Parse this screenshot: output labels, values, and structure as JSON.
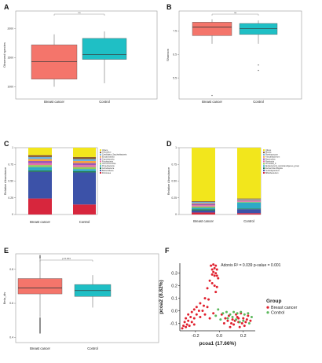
{
  "chart_data": [
    {
      "panel": "A",
      "type": "box",
      "ylabel": "Observed species",
      "yticks": [
        1000,
        1500,
        2000
      ],
      "ylim": [
        790,
        2300
      ],
      "categories": [
        "Breast cancer",
        "Control"
      ],
      "significance": "ns",
      "boxes": [
        {
          "category": "Breast cancer",
          "min": 1000,
          "q1": 1130,
          "median": 1430,
          "q3": 1720,
          "max": 1900,
          "color": "#F4756B"
        },
        {
          "category": "Control",
          "min": 1060,
          "q1": 1470,
          "median": 1550,
          "q3": 1830,
          "max": 1950,
          "color": "#1FBFC5"
        }
      ]
    },
    {
      "panel": "B",
      "type": "box",
      "ylabel": "Shannon",
      "yticks": [
        5.5,
        6.5,
        7.5
      ],
      "ylim": [
        4.6,
        8.35
      ],
      "categories": [
        "Breast cancer",
        "Control"
      ],
      "significance": "ns",
      "boxes": [
        {
          "category": "Breast cancer",
          "min": 6.95,
          "q1": 7.3,
          "median": 7.67,
          "q3": 7.87,
          "max": 8.0,
          "color": "#F4756B",
          "outliers": [
            4.75
          ]
        },
        {
          "category": "Control",
          "min": 6.95,
          "q1": 7.35,
          "median": 7.6,
          "q3": 7.82,
          "max": 7.95,
          "color": "#1FBFC5",
          "outliers": [
            6.05,
            5.82
          ]
        }
      ]
    },
    {
      "panel": "C",
      "type": "stacked_bar",
      "ylabel": "Relative Abundance",
      "yticks": [
        "0",
        "0.25",
        "0.50",
        "0.75",
        "1"
      ],
      "categories": [
        "Breast cancer",
        "Control"
      ],
      "series": [
        {
          "name": "Firmicutes",
          "color": "#D7263D",
          "values": [
            0.24,
            0.15
          ]
        },
        {
          "name": "Bacteroidetes",
          "color": "#3C52A8",
          "values": [
            0.4,
            0.48
          ]
        },
        {
          "name": "Actinobacteria",
          "color": "#1F7A4A",
          "values": [
            0.02,
            0.02
          ]
        },
        {
          "name": "Proteobacteria",
          "color": "#2FA9C7",
          "values": [
            0.05,
            0.03
          ]
        },
        {
          "name": "Verrucomicrobia",
          "color": "#8FCB5A",
          "values": [
            0.03,
            0.03
          ]
        },
        {
          "name": "Fusobacteria",
          "color": "#E46FA8",
          "values": [
            0.03,
            0.03
          ]
        },
        {
          "name": "Cyanobacteria",
          "color": "#9B59B6",
          "values": [
            0.03,
            0.03
          ]
        },
        {
          "name": "Euryarchaeota",
          "color": "#F7A440",
          "values": [
            0.03,
            0.03
          ]
        },
        {
          "name": "Candidatus_Saccharibacteria",
          "color": "#6DB1E0",
          "values": [
            0.03,
            0.03
          ]
        },
        {
          "name": "Chloroflexi",
          "color": "#8B5A2B",
          "values": [
            0.03,
            0.03
          ]
        },
        {
          "name": "Others",
          "color": "#F2E61C",
          "values": [
            0.11,
            0.14
          ]
        }
      ]
    },
    {
      "panel": "D",
      "type": "stacked_bar",
      "ylabel": "Relative Abundance",
      "yticks": [
        "0",
        "0.25",
        "0.50",
        "0.75",
        "1"
      ],
      "categories": [
        "Breast cancer",
        "Control"
      ],
      "series": [
        {
          "name": "Bifidobacterium",
          "color": "#D7263D",
          "values": [
            0.03,
            0.02
          ]
        },
        {
          "name": "Subdoligranulum",
          "color": "#3C52A8",
          "values": [
            0.03,
            0.06
          ]
        },
        {
          "name": "Escherichia-Shigella",
          "color": "#1F7A4A",
          "values": [
            0.02,
            0.01
          ]
        },
        {
          "name": "[Eubacterium]_coprostanoligenes_group",
          "color": "#2FA9C7",
          "values": [
            0.02,
            0.09
          ]
        },
        {
          "name": "Prevotella_9",
          "color": "#8FCB5A",
          "values": [
            0.02,
            0.01
          ]
        },
        {
          "name": "Roseburia",
          "color": "#E46FA8",
          "values": [
            0.02,
            0.01
          ]
        },
        {
          "name": "Bacteroides",
          "color": "#9B59B6",
          "values": [
            0.02,
            0.01
          ]
        },
        {
          "name": "Faecalibacterium",
          "color": "#F7A440",
          "values": [
            0.01,
            0.01
          ]
        },
        {
          "name": "Ruminococcus",
          "color": "#6DB1E0",
          "values": [
            0.02,
            0.01
          ]
        },
        {
          "name": "Blautia",
          "color": "#8B5A2B",
          "values": [
            0.01,
            0.01
          ]
        },
        {
          "name": "Others",
          "color": "#F2E61C",
          "values": [
            0.8,
            0.76
          ]
        }
      ]
    },
    {
      "panel": "E",
      "type": "box",
      "ylabel": "Beta_div",
      "yticks": [
        0.4,
        0.6,
        0.8
      ],
      "ylim": [
        0.37,
        0.89
      ],
      "categories": [
        "Breast cancer",
        "Control"
      ],
      "significance": "p<0.001",
      "boxes": [
        {
          "category": "Breast cancer",
          "min": 0.52,
          "q1": 0.655,
          "median": 0.69,
          "q3": 0.745,
          "max": 0.875,
          "color": "#F4756B"
        },
        {
          "category": "Control",
          "min": 0.575,
          "q1": 0.64,
          "median": 0.675,
          "q3": 0.71,
          "max": 0.765,
          "color": "#1FBFC5"
        }
      ]
    },
    {
      "panel": "F",
      "type": "scatter",
      "xlabel": "pcoa1 (17.66%)",
      "ylabel": "pcoa2 (8.82%)",
      "xticks": [
        "-0.2",
        "0.0",
        "0.2"
      ],
      "yticks": [
        "-0.1",
        "0.0",
        "0.1",
        "0.2",
        "0.3"
      ],
      "xlim": [
        -0.33,
        0.3
      ],
      "ylim": [
        -0.16,
        0.38
      ],
      "annotation": "Adonis   R² = 0.039  p-value = 0.001",
      "legend_title": "Group",
      "series": [
        {
          "name": "Breast cancer",
          "color": "#E0202E",
          "points": [
            [
              -0.07,
              0.36
            ],
            [
              -0.05,
              0.37
            ],
            [
              -0.03,
              0.36
            ],
            [
              -0.06,
              0.33
            ],
            [
              -0.04,
              0.34
            ],
            [
              -0.02,
              0.33
            ],
            [
              -0.05,
              0.31
            ],
            [
              -0.03,
              0.3
            ],
            [
              -0.06,
              0.29
            ],
            [
              -0.04,
              0.28
            ],
            [
              -0.02,
              0.28
            ],
            [
              -0.01,
              0.26
            ],
            [
              -0.08,
              0.24
            ],
            [
              -0.06,
              0.22
            ],
            [
              -0.04,
              0.2
            ],
            [
              -0.02,
              0.19
            ],
            [
              -0.1,
              0.18
            ],
            [
              -0.03,
              0.15
            ],
            [
              -0.12,
              0.1
            ],
            [
              -0.09,
              0.09
            ],
            [
              -0.16,
              0.06
            ],
            [
              -0.13,
              0.04
            ],
            [
              -0.1,
              0.03
            ],
            [
              -0.19,
              0.03
            ],
            [
              -0.17,
              0.0
            ],
            [
              -0.14,
              0.0
            ],
            [
              -0.21,
              0.01
            ],
            [
              -0.23,
              -0.01
            ],
            [
              -0.19,
              -0.03
            ],
            [
              -0.26,
              -0.03
            ],
            [
              -0.24,
              -0.05
            ],
            [
              -0.21,
              -0.06
            ],
            [
              -0.28,
              -0.06
            ],
            [
              -0.26,
              -0.08
            ],
            [
              -0.23,
              -0.09
            ],
            [
              -0.29,
              -0.09
            ],
            [
              -0.27,
              -0.11
            ],
            [
              -0.3,
              -0.12
            ],
            [
              -0.25,
              -0.12
            ],
            [
              -0.28,
              -0.13
            ],
            [
              -0.31,
              -0.14
            ],
            [
              -0.21,
              -0.11
            ],
            [
              -0.16,
              -0.05
            ],
            [
              -0.12,
              -0.03
            ],
            [
              -0.08,
              -0.06
            ],
            [
              -0.05,
              -0.02
            ],
            [
              0.02,
              -0.03
            ],
            [
              0.05,
              -0.06
            ],
            [
              0.08,
              -0.04
            ],
            [
              0.11,
              -0.07
            ],
            [
              0.14,
              -0.03
            ],
            [
              0.16,
              -0.06
            ],
            [
              0.18,
              -0.02
            ],
            [
              0.2,
              -0.06
            ],
            [
              0.22,
              -0.09
            ],
            [
              0.19,
              -0.1
            ],
            [
              0.16,
              -0.09
            ],
            [
              0.13,
              -0.08
            ],
            [
              0.1,
              -0.1
            ],
            [
              0.07,
              -0.08
            ],
            [
              0.24,
              -0.04
            ],
            [
              0.26,
              -0.08
            ],
            [
              0.21,
              -0.12
            ],
            [
              0.17,
              -0.13
            ],
            [
              0.12,
              -0.11
            ],
            [
              0.09,
              -0.13
            ],
            [
              0.04,
              -0.1
            ],
            [
              0.15,
              -0.05
            ],
            [
              0.23,
              -0.07
            ]
          ]
        },
        {
          "name": "Control",
          "color": "#5CB85C",
          "points": [
            [
              -0.01,
              0.01
            ],
            [
              0.03,
              -0.02
            ],
            [
              0.06,
              -0.01
            ],
            [
              0.09,
              -0.03
            ],
            [
              0.12,
              -0.01
            ],
            [
              0.15,
              -0.02
            ],
            [
              0.18,
              -0.01
            ],
            [
              0.21,
              -0.03
            ],
            [
              0.24,
              -0.02
            ],
            [
              0.27,
              -0.05
            ],
            [
              0.11,
              -0.05
            ],
            [
              0.14,
              -0.07
            ],
            [
              0.2,
              -0.08
            ],
            [
              0.01,
              -0.07
            ],
            [
              -0.03,
              -0.04
            ],
            [
              0.17,
              -0.09
            ],
            [
              0.25,
              -0.1
            ],
            [
              0.07,
              -0.06
            ]
          ]
        }
      ]
    }
  ]
}
